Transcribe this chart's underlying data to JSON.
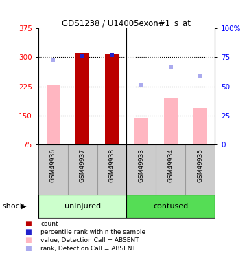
{
  "title": "GDS1238 / U14005exon#1_s_at",
  "samples": [
    "GSM49936",
    "GSM49937",
    "GSM49938",
    "GSM49933",
    "GSM49934",
    "GSM49935"
  ],
  "ylim_left": [
    75,
    375
  ],
  "ylim_right": [
    0,
    100
  ],
  "yticks_left": [
    75,
    150,
    225,
    300,
    375
  ],
  "yticks_right": [
    0,
    25,
    50,
    75,
    100
  ],
  "hgrid_lines": [
    150,
    225,
    300
  ],
  "bar_values": [
    230,
    312,
    310,
    143,
    195,
    170
  ],
  "bar_colors": [
    "#FFB6C1",
    "#BB0000",
    "#BB0000",
    "#FFB6C1",
    "#FFB6C1",
    "#FFB6C1"
  ],
  "rank_markers": [
    293,
    305,
    307,
    228,
    275,
    252
  ],
  "rank_colors": [
    "#AAAAEE",
    "#2222CC",
    "#2222CC",
    "#AAAAEE",
    "#AAAAEE",
    "#AAAAEE"
  ],
  "group_divider": 2.5,
  "group1_label": "uninjured",
  "group2_label": "contused",
  "group1_color": "#CCFFCC",
  "group2_color": "#55DD55",
  "shock_label": "shock",
  "legend_colors": [
    "#BB0000",
    "#2222CC",
    "#FFB6C1",
    "#AAAAEE"
  ],
  "legend_labels": [
    "count",
    "percentile rank within the sample",
    "value, Detection Call = ABSENT",
    "rank, Detection Call = ABSENT"
  ],
  "bar_width": 0.45,
  "marker_size": 5
}
